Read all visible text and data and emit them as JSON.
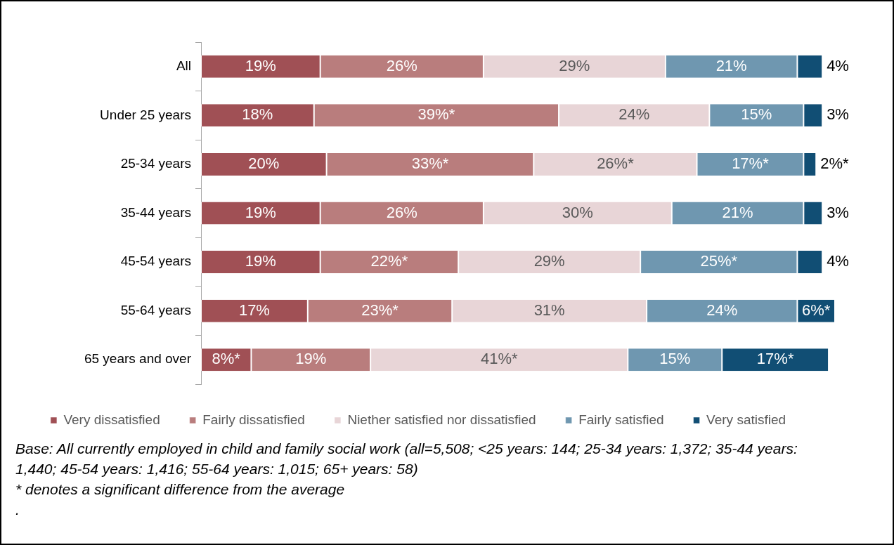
{
  "chart_data": {
    "type": "bar",
    "orientation": "horizontal",
    "stacked": true,
    "legend": "bottom",
    "tick_labels": "y",
    "xlim": [
      0,
      101
    ],
    "categories": [
      "All",
      "Under 25 years",
      "25-34 years",
      "35-44 years",
      "45-54 years",
      "55-64 years",
      "65 years and over"
    ],
    "series": [
      {
        "name": "Very dissatisfied",
        "color": "#a05055",
        "values": [
          19,
          18,
          20,
          19,
          19,
          17,
          8
        ],
        "value_labels": [
          "19%",
          "18%",
          "20%",
          "19%",
          "19%",
          "17%",
          "8%*"
        ]
      },
      {
        "name": "Fairly dissatisfied",
        "color": "#b97d7d",
        "values": [
          26,
          39,
          33,
          26,
          22,
          23,
          19
        ],
        "value_labels": [
          "26%",
          "39%*",
          "33%*",
          "26%",
          "22%*",
          "23%*",
          "19%"
        ]
      },
      {
        "name": "Niether satisfied nor dissatisfied",
        "color": "#e8d5d7",
        "values": [
          29,
          24,
          26,
          30,
          29,
          31,
          41
        ],
        "value_labels": [
          "29%",
          "24%",
          "26%*",
          "30%",
          "29%",
          "31%",
          "41%*"
        ]
      },
      {
        "name": "Fairly satisfied",
        "color": "#6f97b0",
        "values": [
          21,
          15,
          17,
          21,
          25,
          24,
          15
        ],
        "value_labels": [
          "21%",
          "15%",
          "17%*",
          "21%",
          "25%*",
          "24%",
          "15%"
        ]
      },
      {
        "name": "Very satisfied",
        "color": "#114e74",
        "values": [
          4,
          3,
          2,
          3,
          4,
          6,
          17
        ],
        "value_labels": [
          "4%",
          "3%",
          "2%*",
          "3%",
          "4%",
          "6%*",
          "17%*"
        ]
      }
    ],
    "annotations": [
      "Base: All currently employed in child and family social work (all=5,508; <25 years: 144; 25-34 years: 1,372; 35-44 years: 1,440; 45-54 years: 1,416; 55-64 years: 1,015; 65+ years: 58)",
      "* denotes a significant difference from the average",
      "."
    ]
  }
}
